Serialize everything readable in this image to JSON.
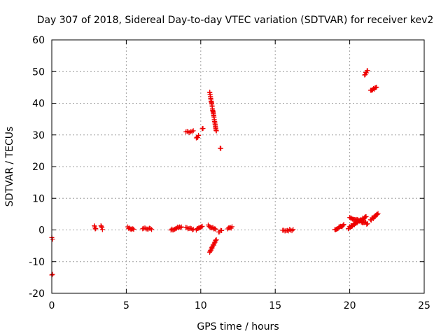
{
  "chart_data": {
    "type": "scatter",
    "title": "Day 307 of 2018, Sidereal Day-to-day VTEC variation (SDTVAR) for receiver kev2",
    "xlabel": "GPS time / hours",
    "ylabel": "SDTVAR / TECUs",
    "xlim": [
      0,
      25
    ],
    "ylim": [
      -20,
      60
    ],
    "xticks": [
      0,
      5,
      10,
      15,
      20,
      25
    ],
    "yticks": [
      -20,
      -10,
      0,
      10,
      20,
      30,
      40,
      50,
      60
    ],
    "grid": true,
    "marker": "plus",
    "color": "#ee0000",
    "series": [
      {
        "name": "SDTVAR",
        "segments": [
          {
            "x0": 0.0,
            "x1": 0.05,
            "y0": -2.5,
            "y1": -2.8
          },
          {
            "x0": 0.0,
            "x1": 0.05,
            "y0": -14.3,
            "y1": -14.3
          },
          {
            "x0": 2.85,
            "x1": 2.95,
            "y0": 1.2,
            "y1": 0.2
          },
          {
            "x0": 3.3,
            "x1": 3.4,
            "y0": 1.2,
            "y1": 0.2
          },
          {
            "x0": 5.1,
            "x1": 5.5,
            "y0": 0.8,
            "y1": 0.0
          },
          {
            "x0": 6.1,
            "x1": 6.7,
            "y0": 0.6,
            "y1": 0.2
          },
          {
            "x0": 8.0,
            "x1": 8.7,
            "y0": 0.0,
            "y1": 1.0
          },
          {
            "x0": 9.0,
            "x1": 9.5,
            "y0": 0.6,
            "y1": 0.2
          },
          {
            "x0": 9.7,
            "x1": 10.1,
            "y0": 0.2,
            "y1": 1.2
          },
          {
            "x0": 10.5,
            "x1": 11.0,
            "y0": 1.3,
            "y1": 0.4
          },
          {
            "x0": 11.2,
            "x1": 11.4,
            "y0": -0.6,
            "y1": -0.2
          },
          {
            "x0": 11.8,
            "x1": 12.1,
            "y0": 0.3,
            "y1": 1.0
          },
          {
            "x0": 10.6,
            "x1": 11.05,
            "y0": -7.0,
            "y1": -3.0
          },
          {
            "x0": 9.0,
            "x1": 9.5,
            "y0": 30.8,
            "y1": 31.1
          },
          {
            "x0": 9.7,
            "x1": 9.85,
            "y0": 29.0,
            "y1": 29.6
          },
          {
            "x0": 10.1,
            "x1": 10.15,
            "y0": 32.2,
            "y1": 32.2
          },
          {
            "x0": 10.6,
            "x1": 11.05,
            "y0": 43.5,
            "y1": 31.0
          },
          {
            "x0": 11.3,
            "x1": 11.35,
            "y0": 25.7,
            "y1": 25.7
          },
          {
            "x0": 15.5,
            "x1": 16.2,
            "y0": -0.3,
            "y1": 0.1
          },
          {
            "x0": 19.0,
            "x1": 19.6,
            "y0": 0.2,
            "y1": 1.5
          },
          {
            "x0": 19.9,
            "x1": 21.1,
            "y0": 0.5,
            "y1": 4.3
          },
          {
            "x0": 20.0,
            "x1": 21.2,
            "y0": 3.8,
            "y1": 2.0
          },
          {
            "x0": 21.0,
            "x1": 21.2,
            "y0": 49.0,
            "y1": 50.2
          },
          {
            "x0": 21.4,
            "x1": 21.8,
            "y0": 43.8,
            "y1": 45.0
          },
          {
            "x0": 21.4,
            "x1": 21.9,
            "y0": 3.2,
            "y1": 5.0
          }
        ]
      }
    ]
  }
}
